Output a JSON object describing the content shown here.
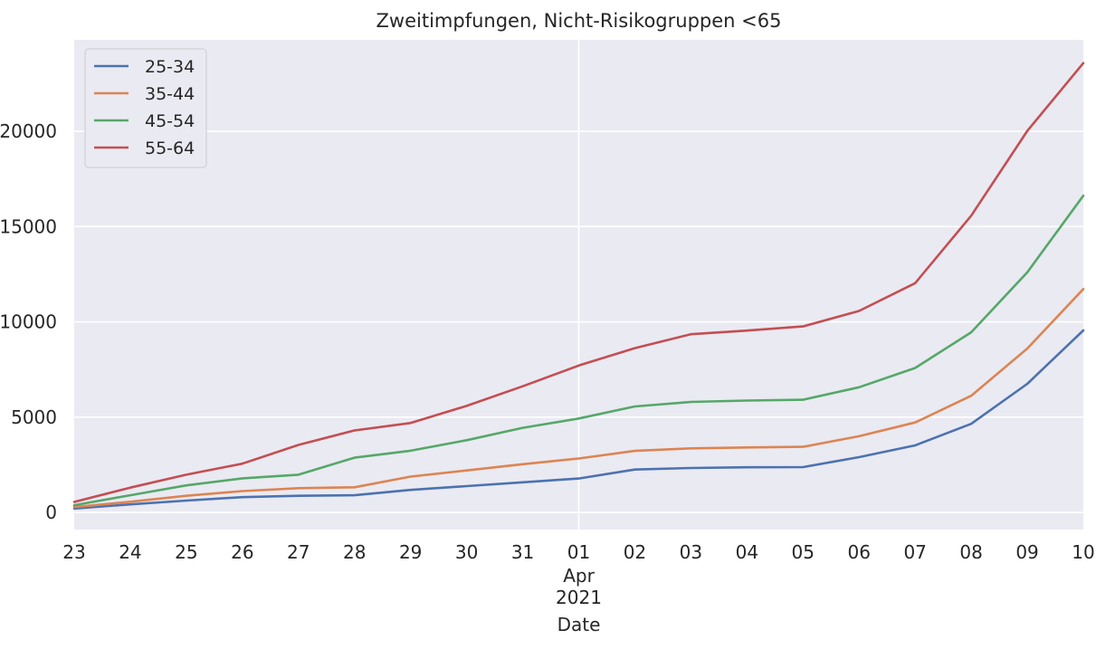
{
  "chart_data": {
    "type": "line",
    "title": "Zweitimpfungen, Nicht-Risikogruppen <65",
    "xlabel": "Date",
    "ylabel": "",
    "x": [
      "23",
      "24",
      "25",
      "26",
      "27",
      "28",
      "29",
      "30",
      "31",
      "01",
      "02",
      "03",
      "04",
      "05",
      "06",
      "07",
      "08",
      "09",
      "10"
    ],
    "x_sublabels": [
      "Apr",
      "2021"
    ],
    "ylim": [
      -900,
      24800
    ],
    "yticks": [
      0,
      5000,
      10000,
      15000,
      20000
    ],
    "ytick_labels": [
      "0",
      "5000",
      "10000",
      "15000",
      "20000"
    ],
    "grid": true,
    "legend_position": "top-left",
    "series": [
      {
        "name": "25-34",
        "color": "#4c72b0",
        "values": [
          200,
          420,
          620,
          800,
          870,
          900,
          1180,
          1380,
          1580,
          1780,
          2250,
          2330,
          2370,
          2380,
          2900,
          3520,
          4650,
          6750,
          9550
        ]
      },
      {
        "name": "35-44",
        "color": "#dd8452",
        "values": [
          280,
          560,
          870,
          1120,
          1270,
          1320,
          1880,
          2200,
          2530,
          2830,
          3230,
          3360,
          3410,
          3440,
          4000,
          4720,
          6120,
          8600,
          11720
        ]
      },
      {
        "name": "45-54",
        "color": "#55a868",
        "values": [
          380,
          900,
          1420,
          1790,
          1980,
          2870,
          3240,
          3790,
          4440,
          4930,
          5560,
          5800,
          5870,
          5910,
          6570,
          7580,
          9450,
          12600,
          16620
        ]
      },
      {
        "name": "55-64",
        "color": "#c44e52",
        "values": [
          550,
          1300,
          1980,
          2560,
          3540,
          4300,
          4690,
          5590,
          6620,
          7710,
          8620,
          9350,
          9540,
          9760,
          10570,
          12030,
          15570,
          20020,
          23580
        ]
      }
    ]
  }
}
